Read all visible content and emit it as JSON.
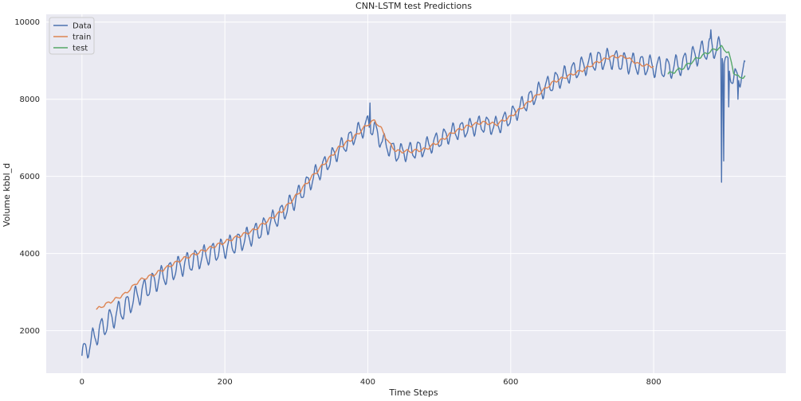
{
  "chart_data": {
    "type": "line",
    "title": "CNN-LSTM test Predictions",
    "xlabel": "Time Steps",
    "ylabel": "Volume kbbl_d",
    "xlim": [
      -50,
      985
    ],
    "ylim": [
      900,
      10200
    ],
    "xticks": [
      0,
      200,
      400,
      600,
      800
    ],
    "yticks": [
      2000,
      4000,
      6000,
      8000,
      10000
    ],
    "grid": true,
    "legend_position": "top-left",
    "series": [
      {
        "name": "Data",
        "color": "#4c72b0",
        "trend": [
          [
            0,
            1350
          ],
          [
            20,
            1900
          ],
          [
            40,
            2300
          ],
          [
            60,
            2600
          ],
          [
            80,
            2950
          ],
          [
            100,
            3250
          ],
          [
            120,
            3500
          ],
          [
            140,
            3700
          ],
          [
            160,
            3850
          ],
          [
            180,
            4000
          ],
          [
            200,
            4150
          ],
          [
            220,
            4300
          ],
          [
            240,
            4500
          ],
          [
            260,
            4750
          ],
          [
            280,
            5050
          ],
          [
            300,
            5450
          ],
          [
            320,
            5900
          ],
          [
            340,
            6300
          ],
          [
            360,
            6700
          ],
          [
            380,
            7050
          ],
          [
            400,
            7350
          ],
          [
            410,
            7200
          ],
          [
            420,
            6900
          ],
          [
            440,
            6600
          ],
          [
            460,
            6650
          ],
          [
            480,
            6750
          ],
          [
            500,
            6950
          ],
          [
            520,
            7150
          ],
          [
            540,
            7250
          ],
          [
            560,
            7350
          ],
          [
            580,
            7300
          ],
          [
            600,
            7550
          ],
          [
            620,
            7900
          ],
          [
            640,
            8200
          ],
          [
            660,
            8450
          ],
          [
            680,
            8650
          ],
          [
            700,
            8850
          ],
          [
            720,
            9000
          ],
          [
            740,
            9050
          ],
          [
            760,
            8950
          ],
          [
            780,
            8900
          ],
          [
            800,
            8850
          ],
          [
            820,
            8800
          ],
          [
            840,
            8900
          ],
          [
            860,
            9150
          ],
          [
            880,
            9350
          ],
          [
            895,
            9300
          ],
          [
            905,
            8750
          ],
          [
            915,
            8500
          ],
          [
            925,
            8700
          ]
        ],
        "oscillation": 600,
        "spikes": [
          [
            403,
            7900
          ],
          [
            880,
            9800
          ],
          [
            895,
            5850
          ],
          [
            898,
            6400
          ],
          [
            905,
            7800
          ],
          [
            918,
            8000
          ]
        ],
        "x_max": 928
      },
      {
        "name": "train",
        "color": "#dd8452",
        "trend": [
          [
            20,
            2550
          ],
          [
            40,
            2750
          ],
          [
            60,
            2950
          ],
          [
            80,
            3300
          ],
          [
            100,
            3450
          ],
          [
            120,
            3650
          ],
          [
            140,
            3850
          ],
          [
            160,
            4000
          ],
          [
            180,
            4150
          ],
          [
            200,
            4300
          ],
          [
            220,
            4450
          ],
          [
            240,
            4600
          ],
          [
            260,
            4850
          ],
          [
            280,
            5100
          ],
          [
            300,
            5500
          ],
          [
            320,
            5950
          ],
          [
            340,
            6350
          ],
          [
            360,
            6750
          ],
          [
            380,
            7000
          ],
          [
            400,
            7350
          ],
          [
            410,
            7450
          ],
          [
            420,
            7200
          ],
          [
            430,
            6850
          ],
          [
            440,
            6650
          ],
          [
            460,
            6650
          ],
          [
            480,
            6700
          ],
          [
            500,
            6900
          ],
          [
            520,
            7150
          ],
          [
            540,
            7300
          ],
          [
            560,
            7400
          ],
          [
            580,
            7350
          ],
          [
            600,
            7550
          ],
          [
            620,
            7850
          ],
          [
            640,
            8150
          ],
          [
            660,
            8450
          ],
          [
            680,
            8600
          ],
          [
            700,
            8750
          ],
          [
            720,
            8950
          ],
          [
            740,
            9100
          ],
          [
            760,
            9100
          ],
          [
            780,
            8900
          ],
          [
            800,
            8850
          ]
        ],
        "oscillation": 90,
        "x_max": 800
      },
      {
        "name": "test",
        "color": "#55a868",
        "trend": [
          [
            820,
            8650
          ],
          [
            840,
            8800
          ],
          [
            860,
            9050
          ],
          [
            880,
            9250
          ],
          [
            895,
            9350
          ],
          [
            905,
            9200
          ],
          [
            912,
            8700
          ],
          [
            920,
            8550
          ],
          [
            928,
            8600
          ]
        ],
        "oscillation": 90,
        "x_max": 928
      }
    ]
  }
}
